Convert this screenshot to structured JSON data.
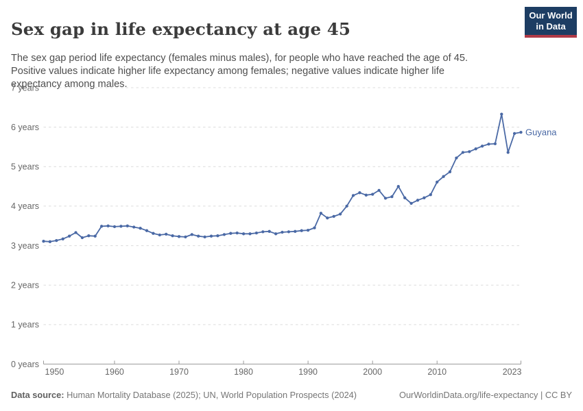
{
  "header": {
    "title": "Sex gap in life expectancy at age 45",
    "subtitle": "The sex gap period life expectancy (females minus males), for people who have reached the age of 45. Positive values indicate higher life expectancy among females; negative values indicate higher life expectancy among males.",
    "logo": {
      "line1": "Our World",
      "line2": "in Data"
    }
  },
  "chart_data": {
    "type": "line",
    "title": "Sex gap in life expectancy at age 45",
    "unit": "years",
    "entity": "Guyana",
    "ylim": [
      0,
      7
    ],
    "yticks": [
      0,
      1,
      2,
      3,
      4,
      5,
      6,
      7
    ],
    "ytick_label_suffix": " years",
    "xticks": [
      1950,
      1960,
      1970,
      1980,
      1990,
      2000,
      2010,
      2023
    ],
    "grid": "horizontal-dashed",
    "legend": "end-of-line-label",
    "series": [
      {
        "name": "Guyana",
        "color": "#4a69a5",
        "x": [
          1949,
          1950,
          1951,
          1952,
          1953,
          1954,
          1955,
          1956,
          1957,
          1958,
          1959,
          1960,
          1961,
          1962,
          1963,
          1964,
          1965,
          1966,
          1967,
          1968,
          1969,
          1970,
          1971,
          1972,
          1973,
          1974,
          1975,
          1976,
          1977,
          1978,
          1979,
          1980,
          1981,
          1982,
          1983,
          1984,
          1985,
          1986,
          1987,
          1988,
          1989,
          1990,
          1991,
          1992,
          1993,
          1994,
          1995,
          1996,
          1997,
          1998,
          1999,
          2000,
          2001,
          2002,
          2003,
          2004,
          2005,
          2006,
          2007,
          2008,
          2009,
          2010,
          2011,
          2012,
          2013,
          2014,
          2015,
          2016,
          2017,
          2018,
          2019,
          2020,
          2021,
          2022,
          2023
        ],
        "values": [
          3.11,
          3.1,
          3.13,
          3.17,
          3.24,
          3.33,
          3.2,
          3.25,
          3.24,
          3.49,
          3.5,
          3.48,
          3.49,
          3.5,
          3.47,
          3.44,
          3.38,
          3.31,
          3.27,
          3.29,
          3.25,
          3.23,
          3.22,
          3.28,
          3.24,
          3.22,
          3.24,
          3.25,
          3.28,
          3.31,
          3.32,
          3.3,
          3.3,
          3.32,
          3.35,
          3.36,
          3.3,
          3.34,
          3.35,
          3.36,
          3.38,
          3.39,
          3.45,
          3.82,
          3.7,
          3.74,
          3.8,
          4.0,
          4.27,
          4.34,
          4.28,
          4.3,
          4.4,
          4.2,
          4.24,
          4.5,
          4.21,
          4.07,
          4.15,
          4.21,
          4.29,
          4.61,
          4.75,
          4.87,
          5.22,
          5.36,
          5.38,
          5.45,
          5.52,
          5.57,
          5.58,
          6.33,
          5.36,
          5.84,
          5.87
        ]
      }
    ]
  },
  "footer": {
    "data_source_label": "Data source:",
    "data_source_text": "Human Mortality Database (2025); UN, World Population Prospects (2024)",
    "link_text": "OurWorldinData.org/life-expectancy | CC BY"
  },
  "colors": {
    "line": "#4a69a5",
    "grid": "#dcdcdc",
    "axis": "#9a9a9a",
    "tick_label": "#666666",
    "title": "#3b3b3b",
    "subtitle": "#4e4e4e",
    "footer": "#757575",
    "logo_bg": "#1d3d63",
    "logo_accent": "#b03a47"
  }
}
